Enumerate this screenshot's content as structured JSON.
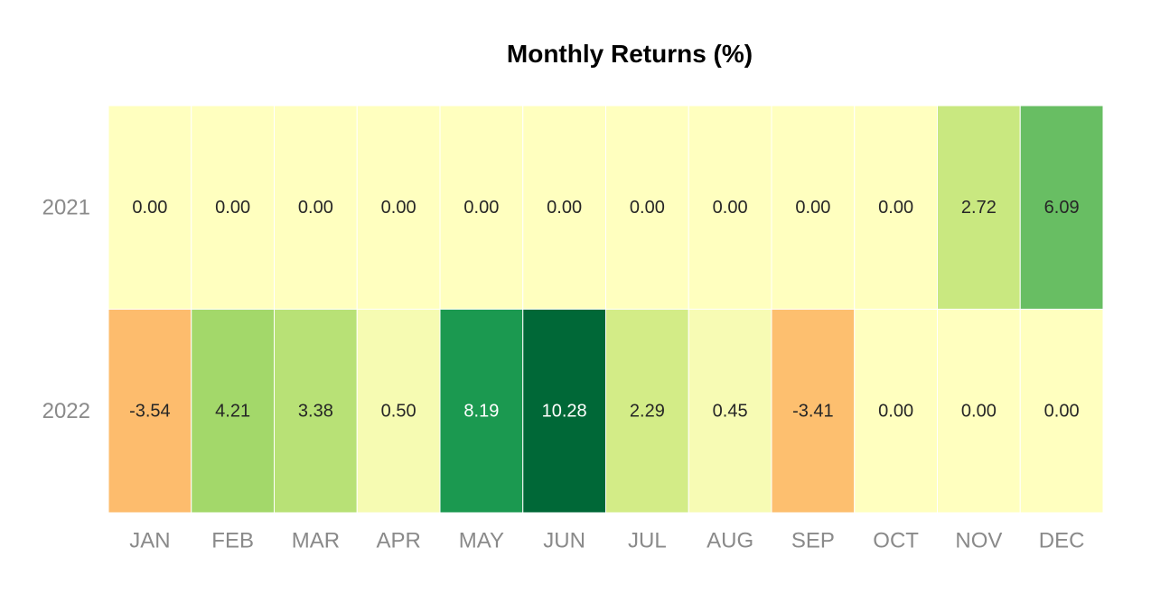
{
  "chart_data": {
    "type": "heatmap",
    "title": "Monthly Returns (%)",
    "xlabel": "",
    "ylabel": "",
    "x_categories": [
      "JAN",
      "FEB",
      "MAR",
      "APR",
      "MAY",
      "JUN",
      "JUL",
      "AUG",
      "SEP",
      "OCT",
      "NOV",
      "DEC"
    ],
    "y_categories": [
      "2021",
      "2022"
    ],
    "values": [
      [
        0.0,
        0.0,
        0.0,
        0.0,
        0.0,
        0.0,
        0.0,
        0.0,
        0.0,
        0.0,
        2.72,
        6.09
      ],
      [
        -3.54,
        4.21,
        3.38,
        0.5,
        8.19,
        10.28,
        2.29,
        0.45,
        -3.41,
        0.0,
        0.0,
        0.0
      ]
    ],
    "value_format": "2 decimals",
    "colormap": "RdYlGn",
    "legend": "none",
    "grid": false
  }
}
